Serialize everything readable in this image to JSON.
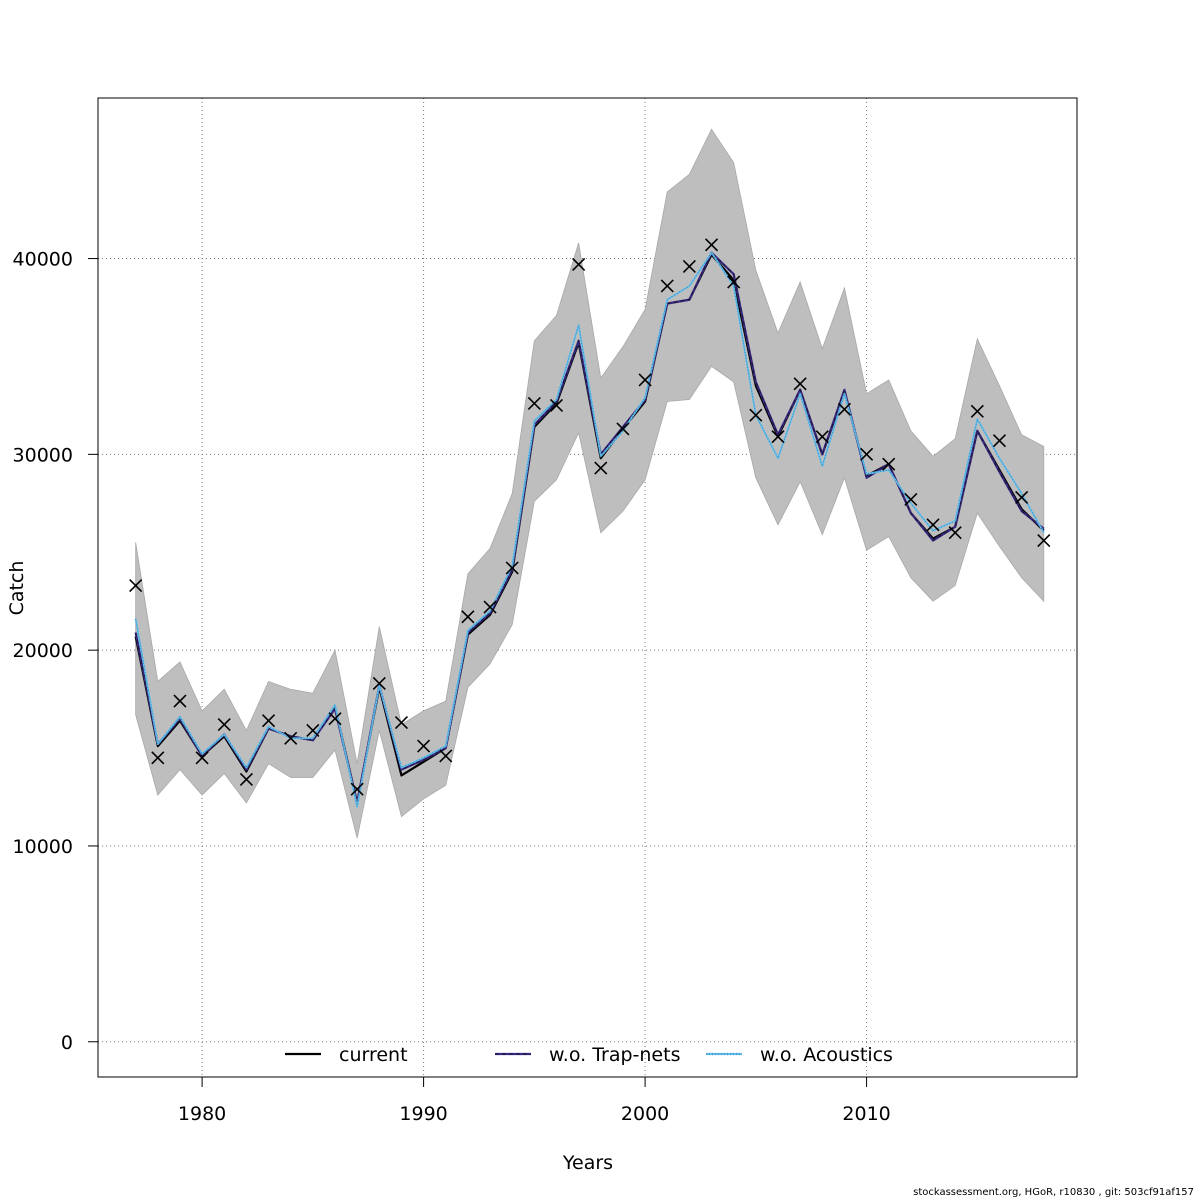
{
  "chart_data": {
    "type": "line",
    "xlabel": "Years",
    "ylabel": "Catch",
    "xlim": [
      1975.3,
      2019.5
    ],
    "ylim": [
      -1800,
      48200
    ],
    "xticks": [
      1980,
      1990,
      2000,
      2010
    ],
    "yticks": [
      0,
      10000,
      20000,
      30000,
      40000
    ],
    "grid": true,
    "legend_position": "bottom",
    "colors": {
      "band": "#bebebe",
      "current": "#000000",
      "trapnets": "#3b2a83",
      "acoustics": "#5fbfee",
      "observed": "#000000"
    },
    "x": [
      1977,
      1978,
      1979,
      1980,
      1981,
      1982,
      1983,
      1984,
      1985,
      1986,
      1987,
      1988,
      1989,
      1990,
      1991,
      1992,
      1993,
      1994,
      1995,
      1996,
      1997,
      1998,
      1999,
      2000,
      2001,
      2002,
      2003,
      2004,
      2005,
      2006,
      2007,
      2008,
      2009,
      2010,
      2011,
      2012,
      2013,
      2014,
      2015,
      2016,
      2017,
      2018
    ],
    "confidence_band": {
      "lower": [
        16700,
        12600,
        13900,
        12600,
        13700,
        12200,
        14200,
        13500,
        13500,
        14900,
        10400,
        15900,
        11500,
        12400,
        13100,
        18100,
        19300,
        21300,
        27600,
        28700,
        31100,
        26000,
        27100,
        28700,
        32700,
        32800,
        34500,
        33700,
        28800,
        26400,
        28600,
        25900,
        28800,
        25100,
        25800,
        23700,
        22500,
        23300,
        27000,
        25300,
        23700,
        22500
      ],
      "upper": [
        25500,
        18400,
        19400,
        16900,
        18000,
        15900,
        18400,
        18000,
        17800,
        20000,
        14200,
        21200,
        16200,
        16900,
        17400,
        23900,
        25200,
        28000,
        35800,
        37100,
        40800,
        33900,
        35500,
        37400,
        43400,
        44300,
        46600,
        44900,
        39400,
        36200,
        38800,
        35400,
        38500,
        33100,
        33800,
        31200,
        29900,
        30800,
        35900,
        33500,
        31000,
        30400
      ]
    },
    "series": [
      {
        "name": "current",
        "style": "solid",
        "values": [
          20700,
          15100,
          16400,
          14600,
          15600,
          13800,
          16000,
          15600,
          15400,
          17100,
          12200,
          18100,
          13600,
          14300,
          15000,
          20800,
          21800,
          24000,
          31400,
          32600,
          35700,
          29800,
          31300,
          32700,
          37700,
          37900,
          40200,
          38900,
          33500,
          30900,
          33300,
          30000,
          33200,
          28900,
          29500,
          27000,
          25700,
          26300,
          31200,
          29200,
          27200,
          26100
        ]
      },
      {
        "name": "w.o. Trap-nets",
        "style": "dashed",
        "values": [
          20900,
          15200,
          16500,
          14600,
          15700,
          13900,
          16000,
          15600,
          15400,
          17000,
          12200,
          18200,
          13900,
          14400,
          15000,
          20900,
          21900,
          24100,
          31500,
          32700,
          35800,
          30000,
          31400,
          32800,
          37700,
          37900,
          40300,
          39200,
          33700,
          31000,
          33300,
          30000,
          33300,
          28800,
          29500,
          27000,
          25600,
          26300,
          31200,
          29100,
          27100,
          26200
        ]
      },
      {
        "name": "w.o. Acoustics",
        "style": "dotted",
        "values": [
          21600,
          15200,
          16600,
          14700,
          15700,
          14000,
          16100,
          15500,
          15500,
          17200,
          12000,
          18200,
          14000,
          14500,
          15100,
          21000,
          22000,
          24300,
          31700,
          32800,
          36600,
          29900,
          31200,
          32900,
          37900,
          38600,
          40300,
          38600,
          32000,
          29800,
          33100,
          29400,
          33100,
          29000,
          29200,
          27500,
          26100,
          26600,
          31800,
          29800,
          28000,
          26000
        ]
      }
    ],
    "observed": {
      "name": "observed",
      "marker": "x",
      "values": [
        23300,
        14500,
        17400,
        14500,
        16200,
        13400,
        16400,
        15500,
        15900,
        16500,
        12900,
        18300,
        16300,
        15100,
        14600,
        21700,
        22200,
        24200,
        32600,
        32500,
        39700,
        29300,
        31300,
        33800,
        38600,
        39600,
        40700,
        38800,
        32000,
        30900,
        33600,
        30900,
        32300,
        30000,
        29500,
        27700,
        26400,
        26000,
        32200,
        30700,
        27800,
        25600
      ]
    }
  },
  "footer": "stockassessment.org, HGoR, r10830 , git: 503cf91af157"
}
